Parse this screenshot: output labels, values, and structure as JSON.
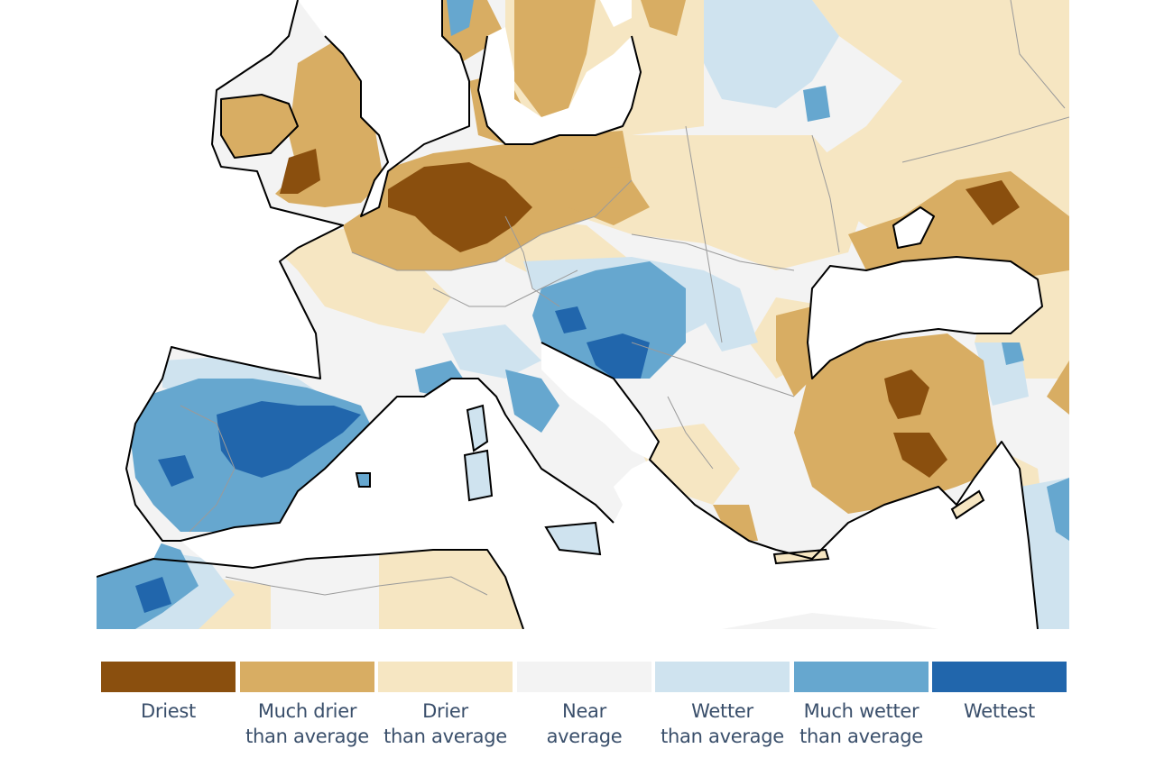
{
  "map": {
    "description_visible": false,
    "colors": {
      "driest": "#8a4f0e",
      "much_drier": "#d8ad63",
      "drier": "#f6e6c2",
      "near": "#f3f3f3",
      "wetter": "#cfe3ef",
      "much_wetter": "#66a7cf",
      "wettest": "#2166ac",
      "sea": "#ffffff",
      "coast": "#000000",
      "border": "#9a9a9a"
    }
  },
  "legend": {
    "items": [
      {
        "line1": "Driest",
        "line2": "",
        "color": "#8a4f0e"
      },
      {
        "line1": "Much drier",
        "line2": "than average",
        "color": "#d8ad63"
      },
      {
        "line1": "Drier",
        "line2": "than average",
        "color": "#f6e6c2"
      },
      {
        "line1": "Near",
        "line2": "average",
        "color": "#f3f3f3"
      },
      {
        "line1": "Wetter",
        "line2": "than average",
        "color": "#cfe3ef"
      },
      {
        "line1": "Much wetter",
        "line2": "than average",
        "color": "#66a7cf"
      },
      {
        "line1": "Wettest",
        "line2": "",
        "color": "#2166ac"
      }
    ]
  }
}
